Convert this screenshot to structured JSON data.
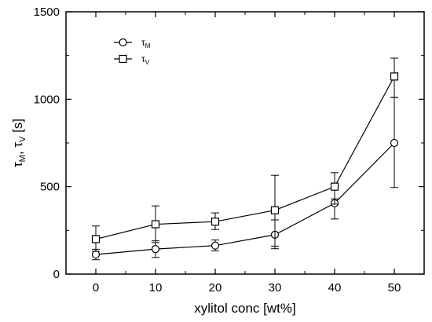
{
  "chart_data": {
    "type": "line",
    "xlabel": "xylitol conc [wt%]",
    "ylabel_parts": {
      "main": "τ",
      "sub1": "M",
      "sep": ", τ",
      "sub2": "V",
      "unit": " [s]"
    },
    "xlim": [
      -5,
      55
    ],
    "ylim": [
      0,
      1500
    ],
    "x_ticks": [
      0,
      10,
      20,
      30,
      40,
      50
    ],
    "y_ticks": [
      0,
      500,
      1000,
      1500
    ],
    "grid": false,
    "legend_position": "top-left",
    "series": [
      {
        "name_main": "τ",
        "name_sub": "M",
        "marker": "circle",
        "x": [
          0,
          10,
          20,
          30,
          40,
          50
        ],
        "y": [
          112,
          143,
          163,
          225,
          405,
          750
        ],
        "err_low": [
          82,
          95,
          133,
          145,
          315,
          495
        ],
        "err_high": [
          142,
          190,
          195,
          310,
          430,
          1010
        ]
      },
      {
        "name_main": "τ",
        "name_sub": "V",
        "marker": "square",
        "x": [
          0,
          10,
          20,
          30,
          40,
          50
        ],
        "y": [
          200,
          285,
          300,
          365,
          500,
          1130
        ],
        "err_low": [
          130,
          180,
          255,
          160,
          400,
          1010
        ],
        "err_high": [
          275,
          390,
          350,
          565,
          580,
          1235
        ]
      }
    ]
  }
}
